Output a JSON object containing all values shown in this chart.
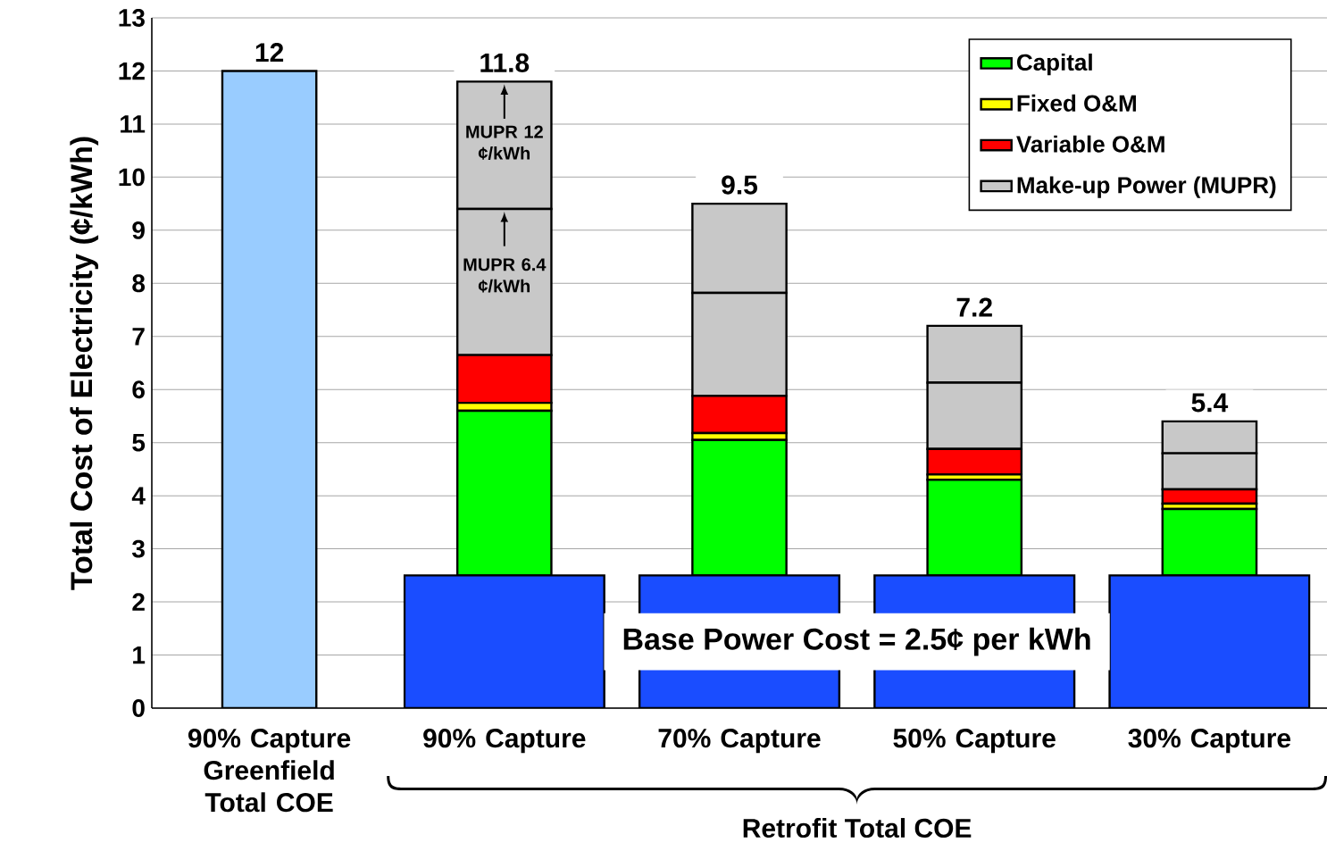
{
  "chart_data": {
    "type": "bar",
    "stacked": true,
    "ylabel": "Total Cost of Electricity (¢/kWh)",
    "categories": [
      "90% Capture Greenfield Total COE",
      "90% Capture",
      "70% Capture",
      "50% Capture",
      "30% Capture"
    ],
    "series": [
      {
        "color": "#99ccff",
        "values": [
          12,
          null,
          null,
          null,
          null
        ]
      },
      {
        "color": "#1a4dff",
        "values": [
          null,
          2.5,
          2.5,
          2.5,
          2.5
        ]
      },
      {
        "name": "Capital",
        "color": "#00ff00",
        "values": [
          null,
          3.1,
          2.55,
          1.8,
          1.25
        ]
      },
      {
        "name": "Fixed O&M",
        "color": "#ffff00",
        "values": [
          null,
          0.15,
          0.13,
          0.1,
          0.1
        ]
      },
      {
        "name": "Variable O&M",
        "color": "#ff0000",
        "values": [
          null,
          0.9,
          0.7,
          0.48,
          0.27
        ]
      },
      {
        "name": "Make-up Power (MUPR)",
        "color": "#c8c8c8",
        "values": [
          null,
          2.75,
          1.94,
          1.25,
          0.68
        ]
      },
      {
        "color": "#c8c8c8",
        "values": [
          null,
          2.4,
          1.68,
          1.07,
          0.6
        ]
      }
    ],
    "totals": [
      "12",
      "11.8",
      "9.5",
      "7.2",
      "5.4"
    ],
    "annotations": [
      "MUPR 12 ¢/kWh",
      "MUPR 6.4 ¢/kWh",
      "Retrofit Total COE",
      "Base Power Cost = 2.5¢ per kWh"
    ],
    "ylim": [
      0,
      13
    ],
    "yticks": [
      0,
      1,
      2,
      3,
      4,
      5,
      6,
      7,
      8,
      9,
      10,
      11,
      12,
      13
    ],
    "grid": "y",
    "legend": "top right"
  }
}
